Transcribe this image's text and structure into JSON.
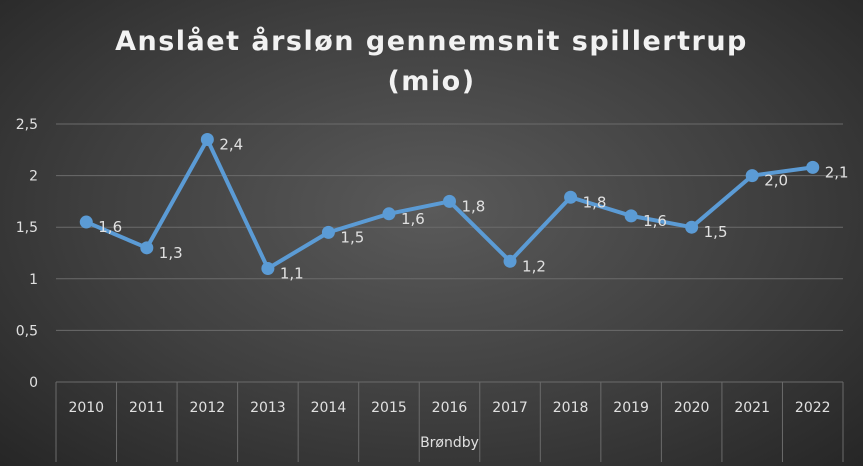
{
  "chart_data": {
    "type": "line",
    "title_line1": "Anslået årsløn gennemsnit spillertrup",
    "title_line2": "(mio)",
    "xlabel": "Brøndby",
    "ylabel": "",
    "categories": [
      "2010",
      "2011",
      "2012",
      "2013",
      "2014",
      "2015",
      "2016",
      "2017",
      "2018",
      "2019",
      "2020",
      "2021",
      "2022"
    ],
    "series": [
      {
        "values": [
          1.55,
          1.3,
          2.35,
          1.1,
          1.45,
          1.63,
          1.75,
          1.17,
          1.79,
          1.61,
          1.5,
          2.0,
          2.08
        ],
        "labels": [
          "1,6",
          "1,3",
          "2,4",
          "1,1",
          "1,5",
          "1,6",
          "1,8",
          "1,2",
          "1,8",
          "1,6",
          "1,5",
          "2,0",
          "2,1"
        ]
      }
    ],
    "yticks": [
      "0",
      "0,5",
      "1",
      "1,5",
      "2",
      "2,5"
    ],
    "ylim": [
      0,
      2.5
    ],
    "grid": true,
    "legend": "none",
    "colors": {
      "line": "#5b9bd5",
      "grid": "#6b6b6b",
      "text": "#e0e0e0",
      "title": "#f2f2f2"
    }
  }
}
